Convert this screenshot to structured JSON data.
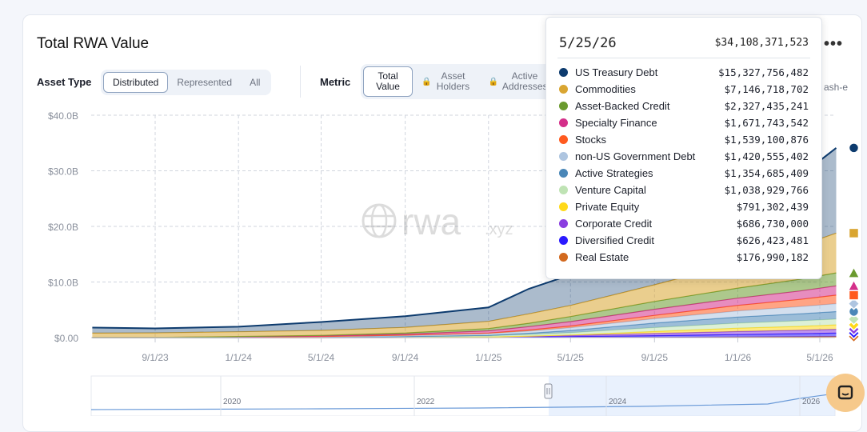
{
  "header": {
    "title": "Total RWA Value",
    "more_label": "•••"
  },
  "asset_type": {
    "label": "Asset Type",
    "options": [
      "Distributed",
      "Represented",
      "All"
    ],
    "selected": "Distributed"
  },
  "metric": {
    "label": "Metric",
    "options": [
      "Total Value",
      "Asset Holders",
      "Active Addresses"
    ],
    "selected": "Total Value",
    "locked": [
      "Asset Holders",
      "Active Addresses"
    ],
    "clipped_option": "ash-e"
  },
  "watermark": {
    "brand": "rwa",
    "suffix": ".xyz"
  },
  "tooltip": {
    "date": "5/25/26",
    "total": "$34,108,371,523",
    "rows": [
      {
        "name": "US Treasury Debt",
        "value": "$15,327,756,482",
        "color": "#0d3b6e"
      },
      {
        "name": "Commodities",
        "value": "$7,146,718,702",
        "color": "#d9a531"
      },
      {
        "name": "Asset-Backed Credit",
        "value": "$2,327,435,241",
        "color": "#6a9a2e"
      },
      {
        "name": "Specialty Finance",
        "value": "$1,671,743,542",
        "color": "#d42f8a"
      },
      {
        "name": "Stocks",
        "value": "$1,539,100,876",
        "color": "#ff5a1f"
      },
      {
        "name": "non-US Government Debt",
        "value": "$1,420,555,402",
        "color": "#aec5e0"
      },
      {
        "name": "Active Strategies",
        "value": "$1,354,685,409",
        "color": "#4a87b8"
      },
      {
        "name": "Venture Capital",
        "value": "$1,038,929,766",
        "color": "#bfe3b4"
      },
      {
        "name": "Private Equity",
        "value": "$791,302,439",
        "color": "#ffd91a"
      },
      {
        "name": "Corporate Credit",
        "value": "$686,730,000",
        "color": "#8a3ee0"
      },
      {
        "name": "Diversified Credit",
        "value": "$626,423,481",
        "color": "#2a1aff"
      },
      {
        "name": "Real Estate",
        "value": "$176,990,182",
        "color": "#d2691e"
      }
    ]
  },
  "navigator": {
    "labels": [
      "2020",
      "2022",
      "2024",
      "2026"
    ]
  },
  "chart_data": {
    "type": "area",
    "stacked": true,
    "y_unit": "USD billions",
    "ylim": [
      0,
      40
    ],
    "y_ticks": [
      "$0.00",
      "$10.0B",
      "$20.0B",
      "$30.0B",
      "$40.0B"
    ],
    "x_ticks": [
      "9/1/23",
      "1/1/24",
      "5/1/24",
      "9/1/24",
      "1/1/25",
      "5/1/25",
      "9/1/25",
      "1/1/26",
      "5/1/26"
    ],
    "x": [
      "6/1/23",
      "9/1/23",
      "1/1/24",
      "5/1/24",
      "9/1/24",
      "1/1/25",
      "3/1/25",
      "5/1/25",
      "9/1/25",
      "1/1/26",
      "4/1/26",
      "5/25/26"
    ],
    "series": [
      {
        "name": "Real Estate",
        "color": "#d2691e",
        "values": [
          0.0,
          0.0,
          0.0,
          0.0,
          0.0,
          0.0,
          0.02,
          0.03,
          0.05,
          0.1,
          0.15,
          0.18
        ]
      },
      {
        "name": "Diversified Credit",
        "color": "#2a1aff",
        "values": [
          0.0,
          0.0,
          0.0,
          0.0,
          0.02,
          0.05,
          0.1,
          0.15,
          0.3,
          0.45,
          0.55,
          0.63
        ]
      },
      {
        "name": "Corporate Credit",
        "color": "#8a3ee0",
        "values": [
          0.0,
          0.0,
          0.0,
          0.0,
          0.02,
          0.05,
          0.1,
          0.2,
          0.4,
          0.55,
          0.62,
          0.69
        ]
      },
      {
        "name": "Private Equity",
        "color": "#ffd91a",
        "values": [
          0.0,
          0.0,
          0.0,
          0.0,
          0.0,
          0.02,
          0.05,
          0.1,
          0.35,
          0.6,
          0.7,
          0.79
        ]
      },
      {
        "name": "Venture Capital",
        "color": "#bfe3b4",
        "values": [
          0.0,
          0.0,
          0.0,
          0.05,
          0.1,
          0.2,
          0.3,
          0.4,
          0.7,
          0.9,
          1.0,
          1.04
        ]
      },
      {
        "name": "Active Strategies",
        "color": "#4a87b8",
        "values": [
          0.0,
          0.0,
          0.0,
          0.0,
          0.05,
          0.1,
          0.2,
          0.4,
          0.8,
          1.1,
          1.25,
          1.35
        ]
      },
      {
        "name": "non-US Government Debt",
        "color": "#aec5e0",
        "values": [
          0.05,
          0.05,
          0.1,
          0.15,
          0.2,
          0.3,
          0.4,
          0.5,
          0.8,
          1.1,
          1.3,
          1.42
        ]
      },
      {
        "name": "Stocks",
        "color": "#ff5a1f",
        "values": [
          0.0,
          0.0,
          0.0,
          0.0,
          0.05,
          0.1,
          0.2,
          0.3,
          0.6,
          1.0,
          1.3,
          1.54
        ]
      },
      {
        "name": "Specialty Finance",
        "color": "#d42f8a",
        "values": [
          0.0,
          0.0,
          0.05,
          0.1,
          0.2,
          0.4,
          0.6,
          0.8,
          1.1,
          1.3,
          1.5,
          1.67
        ]
      },
      {
        "name": "Asset-Backed Credit",
        "color": "#6a9a2e",
        "values": [
          0.0,
          0.0,
          0.05,
          0.1,
          0.2,
          0.4,
          0.6,
          0.9,
          1.4,
          1.8,
          2.1,
          2.33
        ]
      },
      {
        "name": "Commodities",
        "color": "#d9a531",
        "values": [
          0.75,
          0.8,
          0.85,
          0.9,
          1.0,
          1.3,
          1.7,
          2.0,
          3.0,
          4.5,
          6.0,
          7.15
        ]
      },
      {
        "name": "US Treasury Debt",
        "color": "#0d3b6e",
        "values": [
          1.0,
          0.8,
          0.9,
          1.5,
          2.0,
          2.5,
          4.5,
          5.5,
          7.0,
          9.5,
          12.5,
          15.33
        ]
      }
    ],
    "grid": true,
    "legend": "tooltip"
  }
}
